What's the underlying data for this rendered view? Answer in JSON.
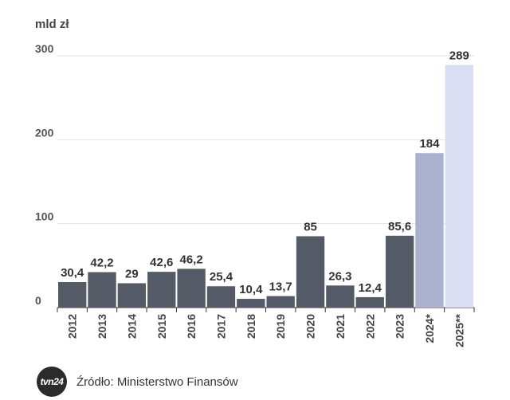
{
  "unit_label": "mld zł",
  "source": "Źródło: Ministerstwo Finansów",
  "logo_text": "tvn24",
  "colors": {
    "actual": "#555a67",
    "forecast_2024": "#a9b1cf",
    "forecast_2025": "#d9def2",
    "grid": "#e3e3e3",
    "text": "#333333"
  },
  "chart_data": {
    "type": "bar",
    "title": "",
    "xlabel": "",
    "ylabel": "mld zł",
    "ylim": [
      0,
      300
    ],
    "yticks": [
      0,
      100,
      200,
      300
    ],
    "categories": [
      "2012",
      "2013",
      "2014",
      "2015",
      "2016",
      "2017",
      "2018",
      "2019",
      "2020",
      "2021",
      "2022",
      "2023",
      "2024*",
      "2025**"
    ],
    "values": [
      30.4,
      42.2,
      29,
      42.6,
      46.2,
      25.4,
      10.4,
      13.7,
      85,
      26.3,
      12.4,
      85.6,
      184,
      289
    ],
    "value_labels": [
      "30,4",
      "42,2",
      "29",
      "42,6",
      "46,2",
      "25,4",
      "10,4",
      "13,7",
      "85",
      "26,3",
      "12,4",
      "85,6",
      "184",
      "289"
    ],
    "bar_styles": [
      "actual",
      "actual",
      "actual",
      "actual",
      "actual",
      "actual",
      "actual",
      "actual",
      "actual",
      "actual",
      "actual",
      "actual",
      "forecast_2024",
      "forecast_2025"
    ]
  }
}
